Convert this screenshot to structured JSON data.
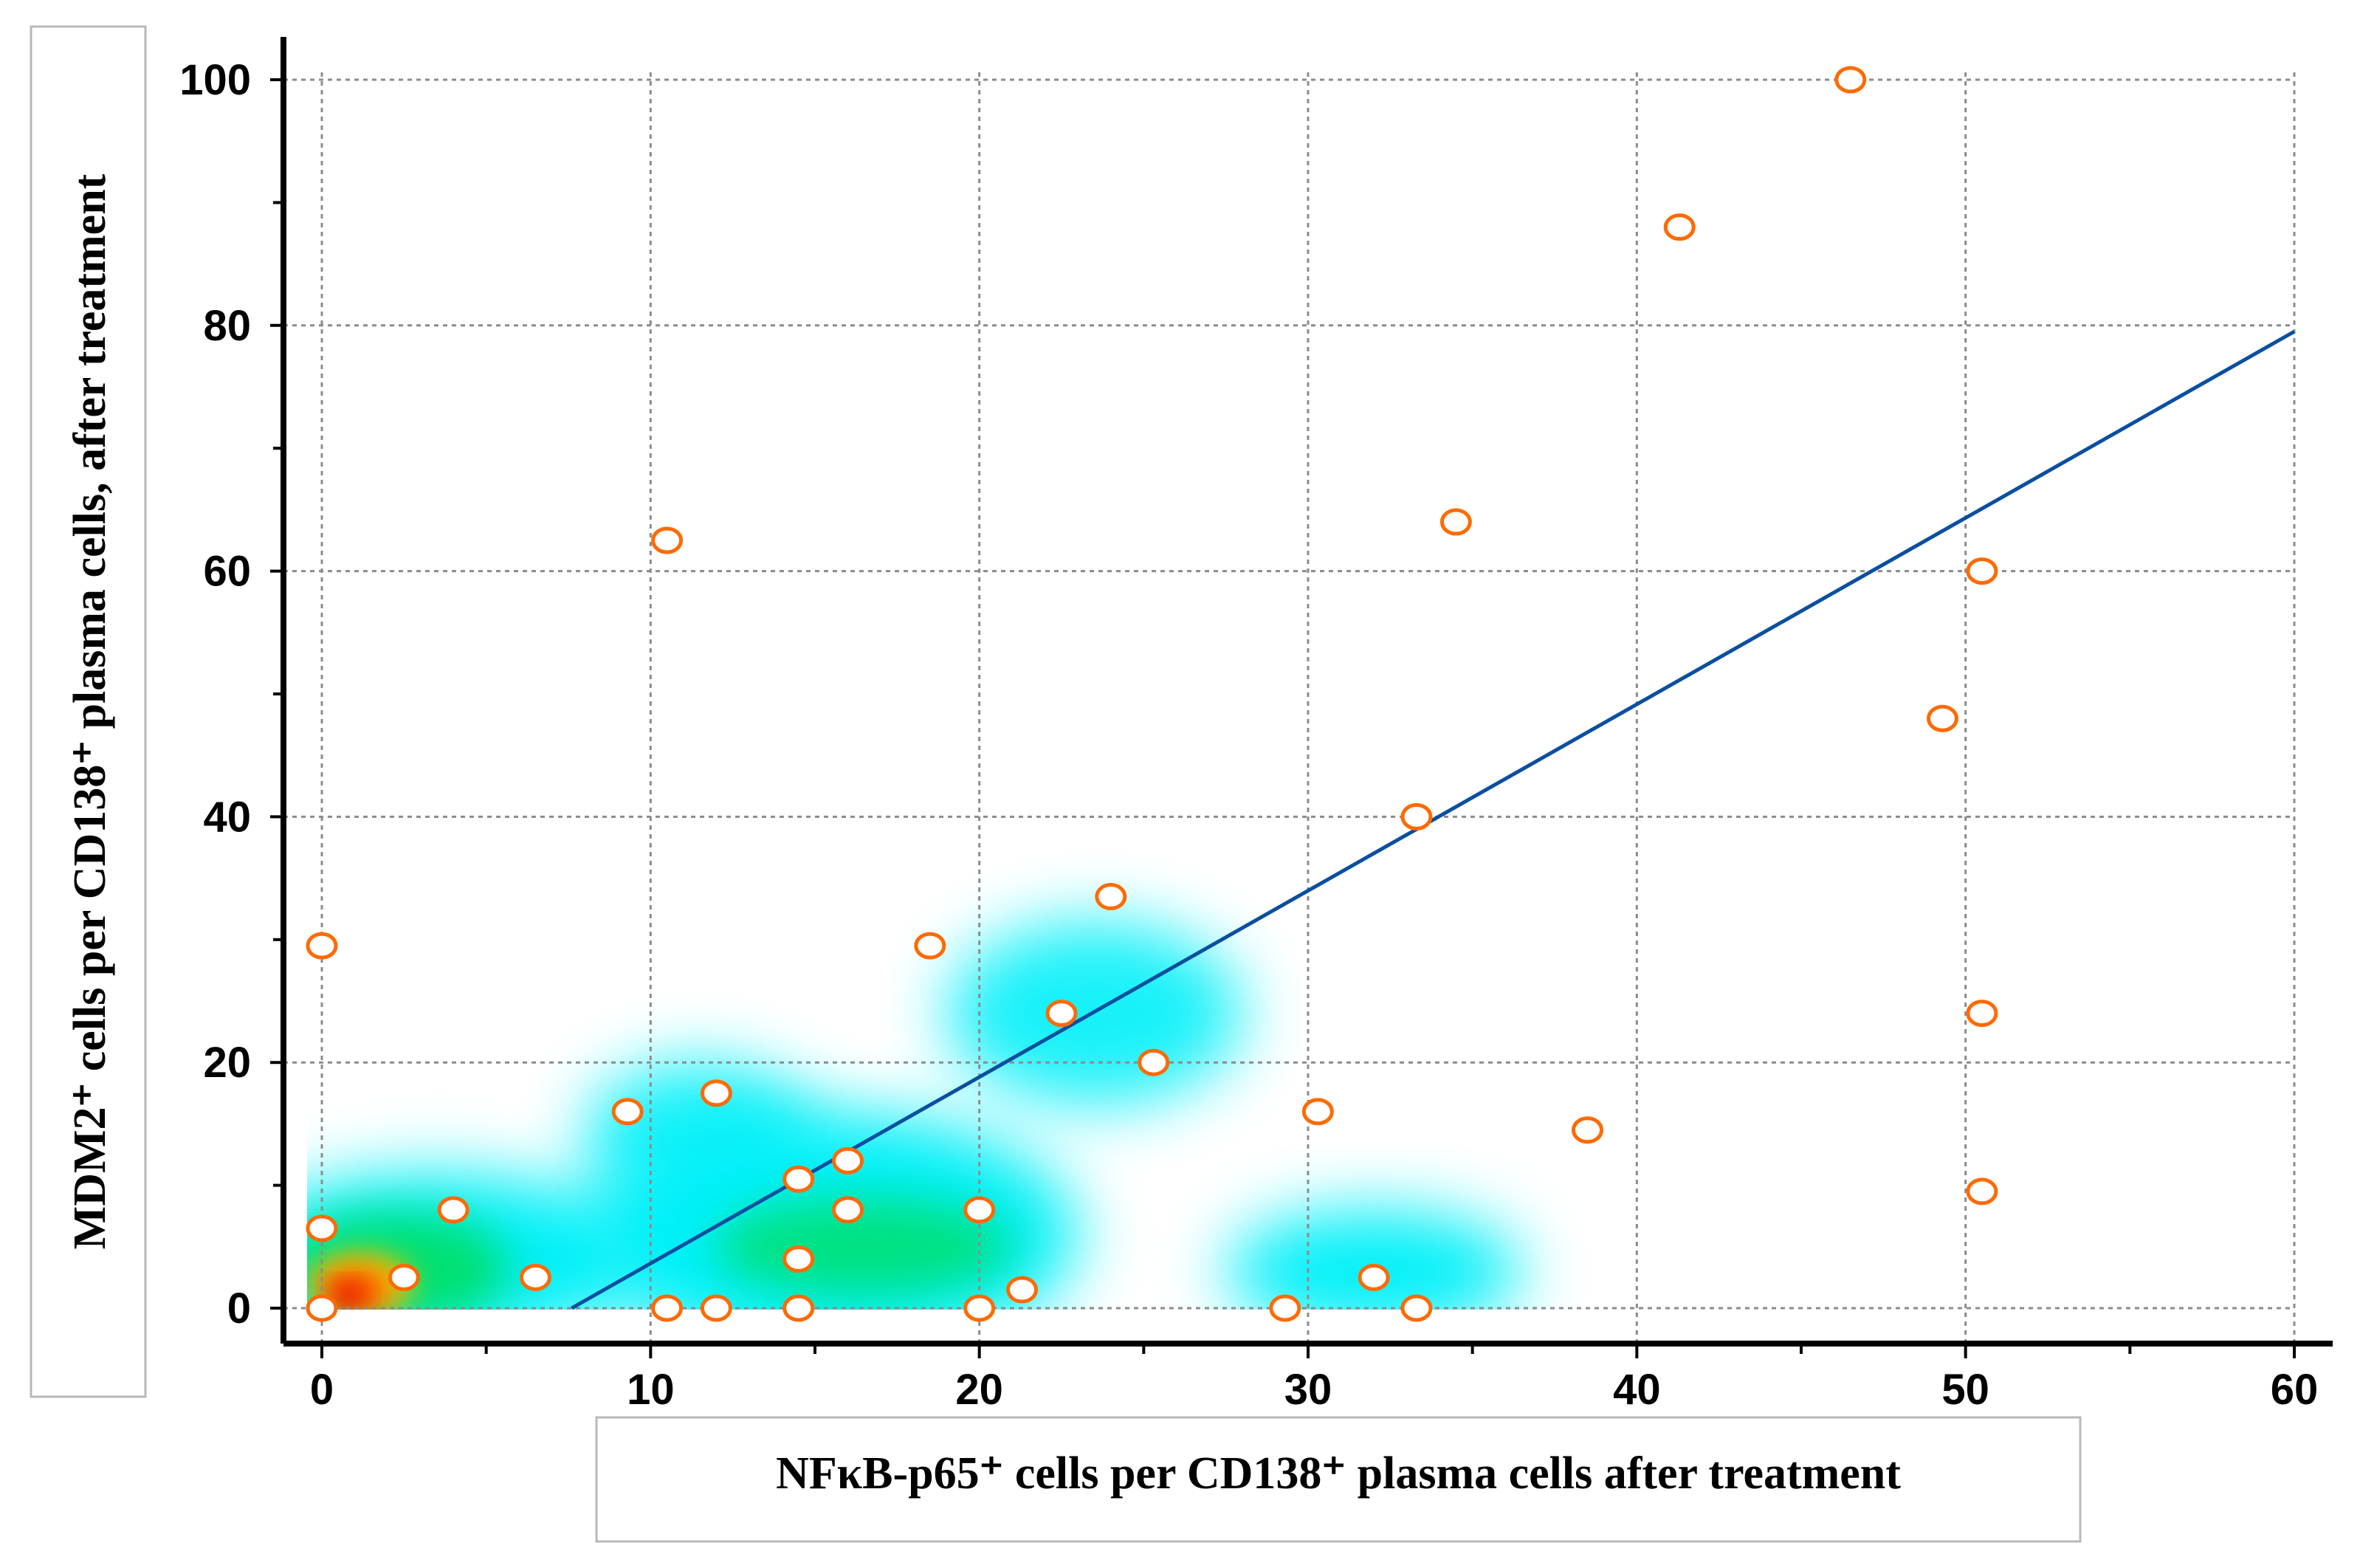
{
  "chart_data": {
    "type": "scatter",
    "title": "",
    "xlabel": "NFκB-p65⁺ cells per CD138⁺ plasma cells after treatment",
    "ylabel": "MDM2⁺ cells per CD138⁺ plasma cells,  after treatment",
    "xlim": [
      0,
      60
    ],
    "ylim": [
      0,
      100
    ],
    "x_ticks": [
      "0",
      "10",
      "20",
      "30",
      "40",
      "50",
      "60"
    ],
    "y_ticks": [
      "0",
      "20",
      "40",
      "60",
      "80",
      "100"
    ],
    "grid": true,
    "points": [
      {
        "x": 0,
        "y": 0
      },
      {
        "x": 0,
        "y": 6.5
      },
      {
        "x": 0,
        "y": 29.5
      },
      {
        "x": 2.5,
        "y": 2.5
      },
      {
        "x": 4,
        "y": 8
      },
      {
        "x": 6.5,
        "y": 2.5
      },
      {
        "x": 9.3,
        "y": 16
      },
      {
        "x": 10.5,
        "y": 0
      },
      {
        "x": 10.5,
        "y": 62.5
      },
      {
        "x": 12,
        "y": 0
      },
      {
        "x": 12,
        "y": 17.5
      },
      {
        "x": 14.5,
        "y": 0
      },
      {
        "x": 14.5,
        "y": 4
      },
      {
        "x": 14.5,
        "y": 10.5
      },
      {
        "x": 16,
        "y": 8
      },
      {
        "x": 16,
        "y": 12
      },
      {
        "x": 18.5,
        "y": 29.5
      },
      {
        "x": 20,
        "y": 0
      },
      {
        "x": 20,
        "y": 8
      },
      {
        "x": 21.3,
        "y": 1.5
      },
      {
        "x": 22.5,
        "y": 24
      },
      {
        "x": 24,
        "y": 33.5
      },
      {
        "x": 25.3,
        "y": 20
      },
      {
        "x": 29.3,
        "y": 0
      },
      {
        "x": 30.3,
        "y": 16
      },
      {
        "x": 32,
        "y": 2.5
      },
      {
        "x": 33.3,
        "y": 0
      },
      {
        "x": 33.3,
        "y": 40
      },
      {
        "x": 34.5,
        "y": 64
      },
      {
        "x": 38.5,
        "y": 14.5
      },
      {
        "x": 41.3,
        "y": 88
      },
      {
        "x": 46.5,
        "y": 100
      },
      {
        "x": 49.3,
        "y": 48
      },
      {
        "x": 50.5,
        "y": 9.5
      },
      {
        "x": 50.5,
        "y": 24
      },
      {
        "x": 50.5,
        "y": 60
      }
    ],
    "regression_line": {
      "x": [
        7.6,
        60
      ],
      "y": [
        0,
        79.5
      ]
    },
    "density_colors": [
      "#00f0f8",
      "#00e070",
      "#f0c000",
      "#ff6000",
      "#e00000"
    ]
  }
}
